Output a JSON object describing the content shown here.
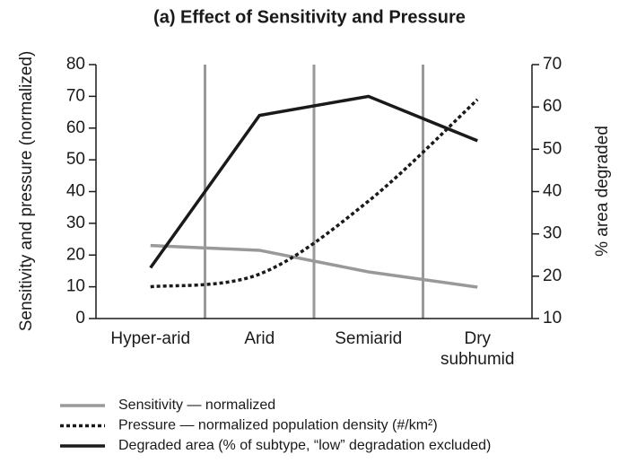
{
  "chart_data": {
    "type": "line",
    "title": "(a) Effect of Sensitivity and Pressure",
    "ylabel": "Sensitivity and pressure (normalized)",
    "y2label": "% area degraded",
    "categories": [
      "Hyper-arid",
      "Arid",
      "Semiarid",
      "Dry\nsubhumid"
    ],
    "series": [
      {
        "name": "Sensitivity — normalized",
        "color": "#999999",
        "dash": "solid",
        "smooth": false,
        "values": [
          23,
          21.5,
          14.7,
          9.9
        ]
      },
      {
        "name": "Pressure — normalized population density (#/km²)",
        "color": "#1a1a1a",
        "dash": "dotted",
        "smooth": true,
        "values": [
          10,
          14,
          37,
          69
        ]
      },
      {
        "name": "Degraded area (% of subtype, “low” degradation excluded)",
        "color": "#1a1a1a",
        "dash": "solid",
        "smooth": false,
        "axis": "y2",
        "values": [
          22,
          58,
          62.5,
          52
        ]
      }
    ],
    "ylim": [
      0,
      80
    ],
    "yticks": [
      0,
      10,
      20,
      30,
      40,
      50,
      60,
      70,
      80
    ],
    "y2lim": [
      10,
      70
    ],
    "y2ticks": [
      10,
      20,
      30,
      40,
      50,
      60,
      70
    ],
    "legend": "bottom"
  }
}
